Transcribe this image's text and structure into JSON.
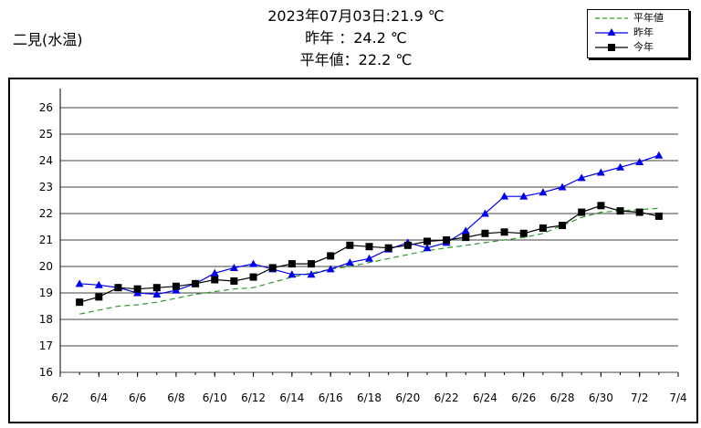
{
  "station": "二見(水温)",
  "header": {
    "line1": "2023年07月03日:21.9 ℃",
    "line2": "昨年 ：24.2 ℃",
    "line3": "平年値：22.2 ℃"
  },
  "legend": {
    "normal": "平年値",
    "last_year": "昨年",
    "this_year": "今年"
  },
  "colors": {
    "normal": "#2e9a2e",
    "last_year": "#0000ee",
    "this_year": "#000000",
    "grid": "#000000"
  },
  "chart_data": {
    "type": "line",
    "title": "",
    "xlabel": "",
    "ylabel": "",
    "x": [
      "6/3",
      "6/4",
      "6/5",
      "6/6",
      "6/7",
      "6/8",
      "6/9",
      "6/10",
      "6/11",
      "6/12",
      "6/13",
      "6/14",
      "6/15",
      "6/16",
      "6/17",
      "6/18",
      "6/19",
      "6/20",
      "6/21",
      "6/22",
      "6/23",
      "6/24",
      "6/25",
      "6/26",
      "6/27",
      "6/28",
      "6/29",
      "6/30",
      "7/1",
      "7/2",
      "7/3"
    ],
    "x_ticks": [
      "6/2",
      "6/4",
      "6/6",
      "6/8",
      "6/10",
      "6/12",
      "6/14",
      "6/16",
      "6/18",
      "6/20",
      "6/22",
      "6/24",
      "6/26",
      "6/28",
      "6/30",
      "7/2",
      "7/4"
    ],
    "ylim": [
      16,
      26
    ],
    "y_ticks": [
      "16",
      "17",
      "18",
      "19",
      "20",
      "21",
      "22",
      "23",
      "24",
      "25",
      "26"
    ],
    "grid": true,
    "legend_position": "top-right",
    "series": [
      {
        "name": "平年値",
        "style": "dashed",
        "marker": "none",
        "values": [
          18.2,
          18.35,
          18.5,
          18.55,
          18.65,
          18.8,
          18.95,
          19.05,
          19.15,
          19.2,
          19.4,
          19.6,
          19.75,
          19.9,
          20.0,
          20.15,
          20.3,
          20.45,
          20.6,
          20.7,
          20.8,
          20.9,
          21.0,
          21.1,
          21.25,
          21.55,
          21.85,
          22.05,
          22.1,
          22.15,
          22.2
        ]
      },
      {
        "name": "昨年",
        "style": "solid",
        "marker": "triangle",
        "values": [
          19.35,
          19.3,
          19.2,
          19.0,
          18.95,
          19.1,
          19.35,
          19.75,
          19.95,
          20.1,
          19.9,
          19.7,
          19.7,
          19.9,
          20.15,
          20.3,
          20.65,
          20.9,
          20.7,
          20.9,
          21.35,
          22.0,
          22.65,
          22.65,
          22.8,
          23.0,
          23.35,
          23.55,
          23.75,
          23.95,
          24.2
        ]
      },
      {
        "name": "今年",
        "style": "solid",
        "marker": "square",
        "values": [
          18.65,
          18.85,
          19.2,
          19.15,
          19.2,
          19.25,
          19.35,
          19.5,
          19.45,
          19.6,
          19.95,
          20.1,
          20.1,
          20.4,
          20.8,
          20.75,
          20.7,
          20.8,
          20.95,
          21.0,
          21.1,
          21.25,
          21.3,
          21.25,
          21.45,
          21.55,
          22.05,
          22.3,
          22.1,
          22.05,
          21.9
        ]
      }
    ]
  }
}
